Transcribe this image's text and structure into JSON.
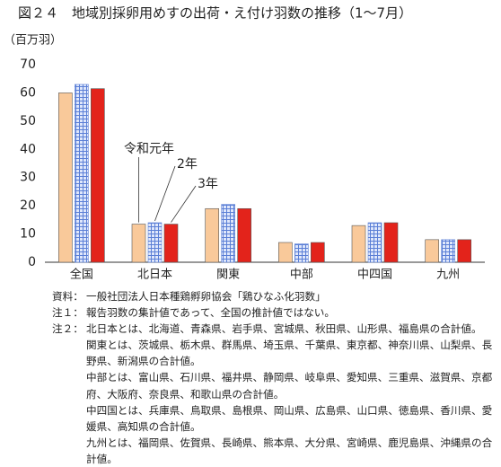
{
  "chart_data": {
    "type": "bar",
    "title": "図２４　地域別採卵用めすの出荷・え付け羽数の推移（1～7月）",
    "y_label": "（百万羽）",
    "categories": [
      "全国",
      "北日本",
      "関東",
      "中部",
      "中四国",
      "九州"
    ],
    "series": [
      {
        "name": "令和元年",
        "color": "#f9c99a",
        "values": [
          60,
          13.5,
          19,
          7,
          13,
          8
        ]
      },
      {
        "name": "2年",
        "color": "#5b7fd6",
        "hatch": true,
        "values": [
          63,
          14,
          20.5,
          6.5,
          14,
          8
        ]
      },
      {
        "name": "3年",
        "color": "#e3231b",
        "values": [
          61.5,
          13.5,
          19,
          7,
          14,
          8
        ]
      }
    ],
    "ylim": [
      0,
      70
    ],
    "yticks": [
      0,
      10,
      20,
      30,
      40,
      50,
      60,
      70
    ],
    "grid": false,
    "notes": [
      {
        "label": "資料：",
        "text": [
          "一般社団法人日本種鶏孵卵協会「鶏ひなふ化羽数」"
        ]
      },
      {
        "label": "注１：",
        "text": [
          "報告羽数の集計値であって、全国の推計値ではない。"
        ]
      },
      {
        "label": "注２：",
        "text": [
          "北日本とは、北海道、青森県、岩手県、宮城県、秋田県、山形県、福島県の合計値。",
          "関東とは、茨城県、栃木県、群馬県、埼玉県、千葉県、東京都、神奈川県、山梨県、長野県、新潟県の合計値。",
          "中部とは、富山県、石川県、福井県、静岡県、岐阜県、愛知県、三重県、滋賀県、京都府、大阪府、奈良県、和歌山県の合計値。",
          "中四国とは、兵庫県、鳥取県、島根県、岡山県、広島県、山口県、徳島県、香川県、愛媛県、高知県の合計値。",
          "九州とは、福岡県、佐賀県、長崎県、熊本県、大分県、宮崎県、鹿児島県、沖縄県の合計値。"
        ]
      }
    ]
  }
}
